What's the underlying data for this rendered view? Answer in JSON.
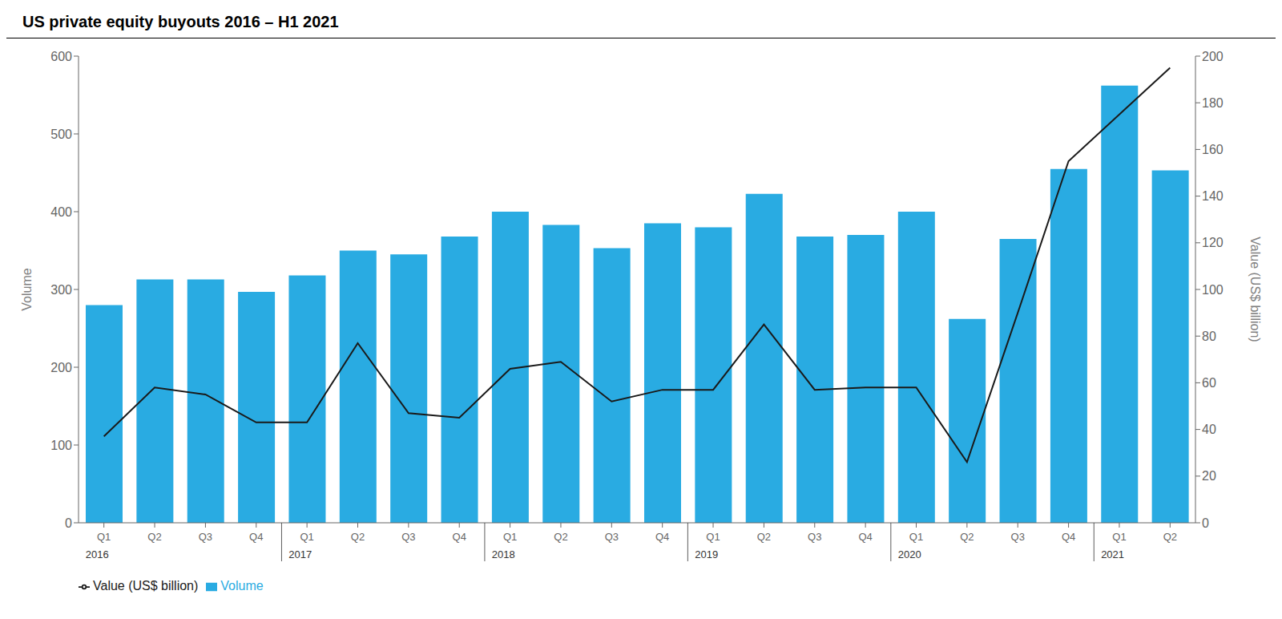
{
  "chart_data": {
    "type": "bar",
    "title": "US private equity buyouts 2016 – H1 2021",
    "categories": [
      "Q1",
      "Q2",
      "Q3",
      "Q4",
      "Q1",
      "Q2",
      "Q3",
      "Q4",
      "Q1",
      "Q2",
      "Q3",
      "Q4",
      "Q1",
      "Q2",
      "Q3",
      "Q4",
      "Q1",
      "Q2",
      "Q3",
      "Q4",
      "Q1",
      "Q2"
    ],
    "series": [
      {
        "name": "Volume",
        "type": "bar",
        "color": "#29ABE2",
        "values": [
          280,
          313,
          313,
          297,
          318,
          350,
          345,
          368,
          400,
          383,
          353,
          385,
          380,
          423,
          368,
          370,
          400,
          262,
          365,
          455,
          562,
          453
        ]
      },
      {
        "name": "Value (US$ billion)",
        "type": "line",
        "color": "#1a1a1a",
        "axis": "y2",
        "values": [
          37,
          58,
          55,
          43,
          43,
          77,
          47,
          45,
          66,
          69,
          52,
          57,
          57,
          85,
          57,
          58,
          58,
          26,
          90,
          155,
          175,
          195
        ]
      }
    ],
    "ylabel": "Volume",
    "y2label": "Value (US$ billion)",
    "ylim": [
      0,
      600
    ],
    "yticks": [
      0,
      100,
      200,
      300,
      400,
      500,
      600
    ],
    "y2lim": [
      0,
      200
    ],
    "y2ticks": [
      0,
      20,
      40,
      60,
      80,
      100,
      120,
      140,
      160,
      180,
      200
    ],
    "annotations": [
      {
        "text": "2016",
        "x": 0
      },
      {
        "text": "2017",
        "x": 4
      },
      {
        "text": "2018",
        "x": 8
      },
      {
        "text": "2019",
        "x": 12
      },
      {
        "text": "2020",
        "x": 16
      },
      {
        "text": "2021",
        "x": 20
      }
    ],
    "grid": false,
    "legend": "bottom left"
  }
}
